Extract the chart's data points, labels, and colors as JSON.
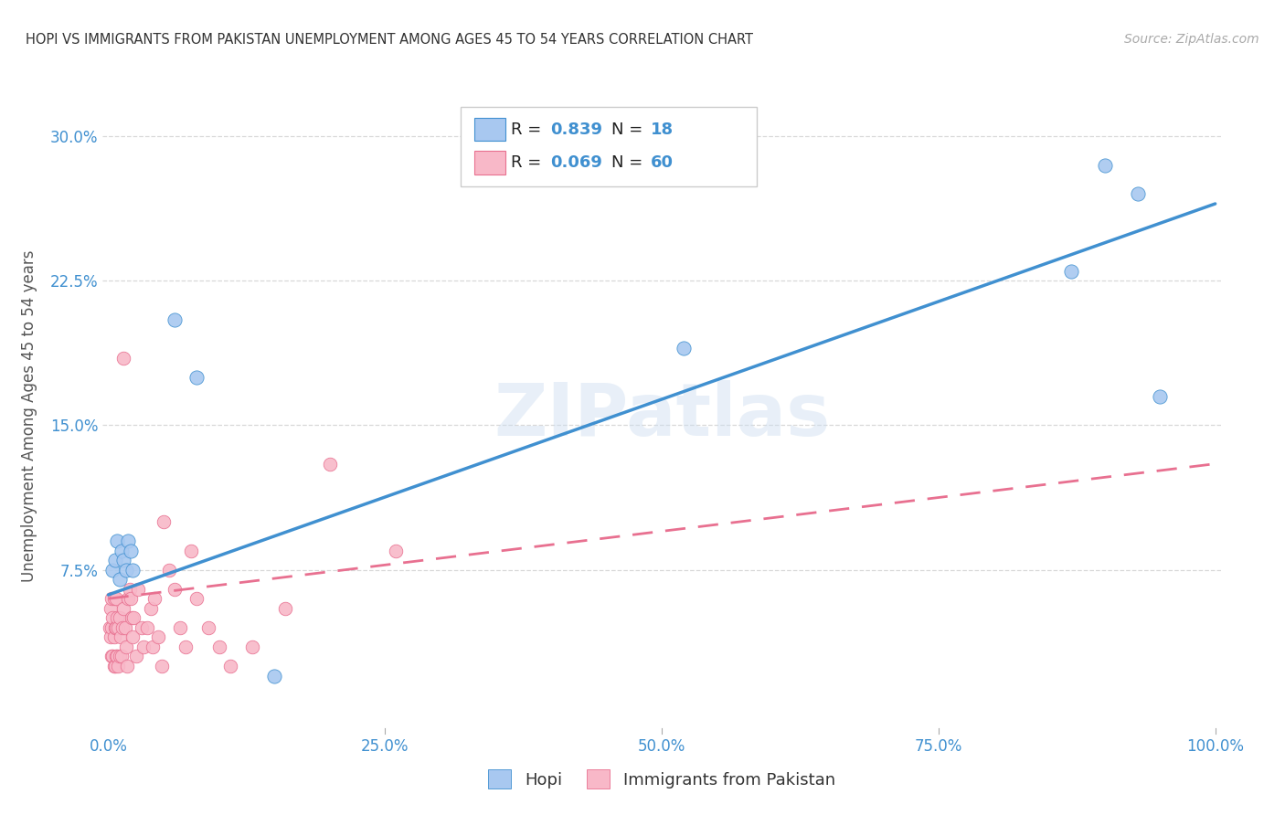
{
  "title": "HOPI VS IMMIGRANTS FROM PAKISTAN UNEMPLOYMENT AMONG AGES 45 TO 54 YEARS CORRELATION CHART",
  "source": "Source: ZipAtlas.com",
  "ylabel": "Unemployment Among Ages 45 to 54 years",
  "bg_color": "#ffffff",
  "grid_color": "#d8d8d8",
  "hopi_color": "#a8c8f0",
  "pakistan_color": "#f8b8c8",
  "hopi_line_color": "#4090d0",
  "pakistan_line_color": "#e87090",
  "tick_color": "#4090d0",
  "hopi_R": 0.839,
  "hopi_N": 18,
  "pakistan_R": 0.069,
  "pakistan_N": 60,
  "xlim": [
    -0.005,
    1.005
  ],
  "ylim": [
    -0.01,
    0.32
  ],
  "xticks": [
    0.0,
    0.25,
    0.5,
    0.75,
    1.0
  ],
  "yticks": [
    0.075,
    0.15,
    0.225,
    0.3
  ],
  "hopi_x": [
    0.004,
    0.006,
    0.008,
    0.01,
    0.012,
    0.014,
    0.016,
    0.018,
    0.02,
    0.022,
    0.06,
    0.08,
    0.15,
    0.52,
    0.87,
    0.9,
    0.93,
    0.95
  ],
  "hopi_y": [
    0.075,
    0.08,
    0.09,
    0.07,
    0.085,
    0.08,
    0.075,
    0.09,
    0.085,
    0.075,
    0.205,
    0.175,
    0.02,
    0.19,
    0.23,
    0.285,
    0.27,
    0.165
  ],
  "pakistan_x": [
    0.001,
    0.002,
    0.002,
    0.003,
    0.003,
    0.003,
    0.004,
    0.004,
    0.005,
    0.005,
    0.005,
    0.006,
    0.006,
    0.007,
    0.007,
    0.007,
    0.008,
    0.008,
    0.009,
    0.009,
    0.01,
    0.01,
    0.011,
    0.012,
    0.013,
    0.014,
    0.015,
    0.016,
    0.017,
    0.018,
    0.019,
    0.02,
    0.021,
    0.022,
    0.023,
    0.025,
    0.027,
    0.03,
    0.032,
    0.035,
    0.038,
    0.04,
    0.042,
    0.045,
    0.048,
    0.05,
    0.055,
    0.06,
    0.065,
    0.07,
    0.075,
    0.08,
    0.09,
    0.1,
    0.11,
    0.13,
    0.16,
    0.2,
    0.26,
    0.014
  ],
  "pakistan_y": [
    0.045,
    0.04,
    0.055,
    0.03,
    0.045,
    0.06,
    0.03,
    0.05,
    0.025,
    0.04,
    0.06,
    0.025,
    0.045,
    0.03,
    0.045,
    0.06,
    0.03,
    0.05,
    0.025,
    0.045,
    0.03,
    0.05,
    0.04,
    0.03,
    0.045,
    0.055,
    0.045,
    0.035,
    0.025,
    0.06,
    0.065,
    0.06,
    0.05,
    0.04,
    0.05,
    0.03,
    0.065,
    0.045,
    0.035,
    0.045,
    0.055,
    0.035,
    0.06,
    0.04,
    0.025,
    0.1,
    0.075,
    0.065,
    0.045,
    0.035,
    0.085,
    0.06,
    0.045,
    0.035,
    0.025,
    0.035,
    0.055,
    0.13,
    0.085,
    0.185
  ],
  "hopi_line_x0": 0.0,
  "hopi_line_y0": 0.062,
  "hopi_line_x1": 1.0,
  "hopi_line_y1": 0.265,
  "pk_line_x0": 0.0,
  "pk_line_y0": 0.06,
  "pk_line_x1": 1.0,
  "pk_line_y1": 0.13,
  "watermark": "ZIPatlas"
}
